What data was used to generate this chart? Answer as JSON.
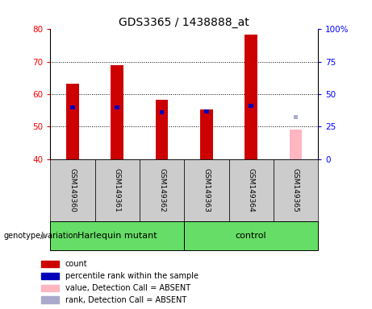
{
  "title": "GDS3365 / 1438888_at",
  "samples": [
    "GSM149360",
    "GSM149361",
    "GSM149362",
    "GSM149363",
    "GSM149364",
    "GSM149365"
  ],
  "red_values": [
    63.3,
    69.0,
    58.2,
    55.2,
    78.5,
    null
  ],
  "blue_values": [
    56.0,
    56.0,
    54.5,
    54.8,
    56.5,
    null
  ],
  "pink_value": [
    null,
    null,
    null,
    null,
    null,
    49.0
  ],
  "light_blue_value": [
    null,
    null,
    null,
    null,
    null,
    53.0
  ],
  "absent_flags": [
    false,
    false,
    false,
    false,
    false,
    true
  ],
  "ymin": 40,
  "ymax": 80,
  "y2min": 0,
  "y2max": 100,
  "yticks_left": [
    40,
    50,
    60,
    70,
    80
  ],
  "yticks_right": [
    0,
    25,
    50,
    75,
    100
  ],
  "bar_bottom": 40,
  "groups": [
    {
      "label": "Harlequin mutant",
      "start": 0,
      "end": 3
    },
    {
      "label": "control",
      "start": 3,
      "end": 6
    }
  ],
  "group_label": "genotype/variation",
  "legend_items": [
    {
      "label": "count",
      "color": "#CC0000"
    },
    {
      "label": "percentile rank within the sample",
      "color": "#0000BB"
    },
    {
      "label": "value, Detection Call = ABSENT",
      "color": "#FFB6C1"
    },
    {
      "label": "rank, Detection Call = ABSENT",
      "color": "#AAAACC"
    }
  ],
  "bar_color": "#CC0000",
  "dot_color": "#0000BB",
  "absent_bar_color": "#FFB6C1",
  "absent_dot_color": "#AAAACC",
  "tick_bg_color": "#CCCCCC",
  "group_color": "#66DD66",
  "title_fontsize": 10,
  "tick_fontsize": 7.5,
  "sample_fontsize": 6.5,
  "legend_fontsize": 7,
  "group_fontsize": 8
}
